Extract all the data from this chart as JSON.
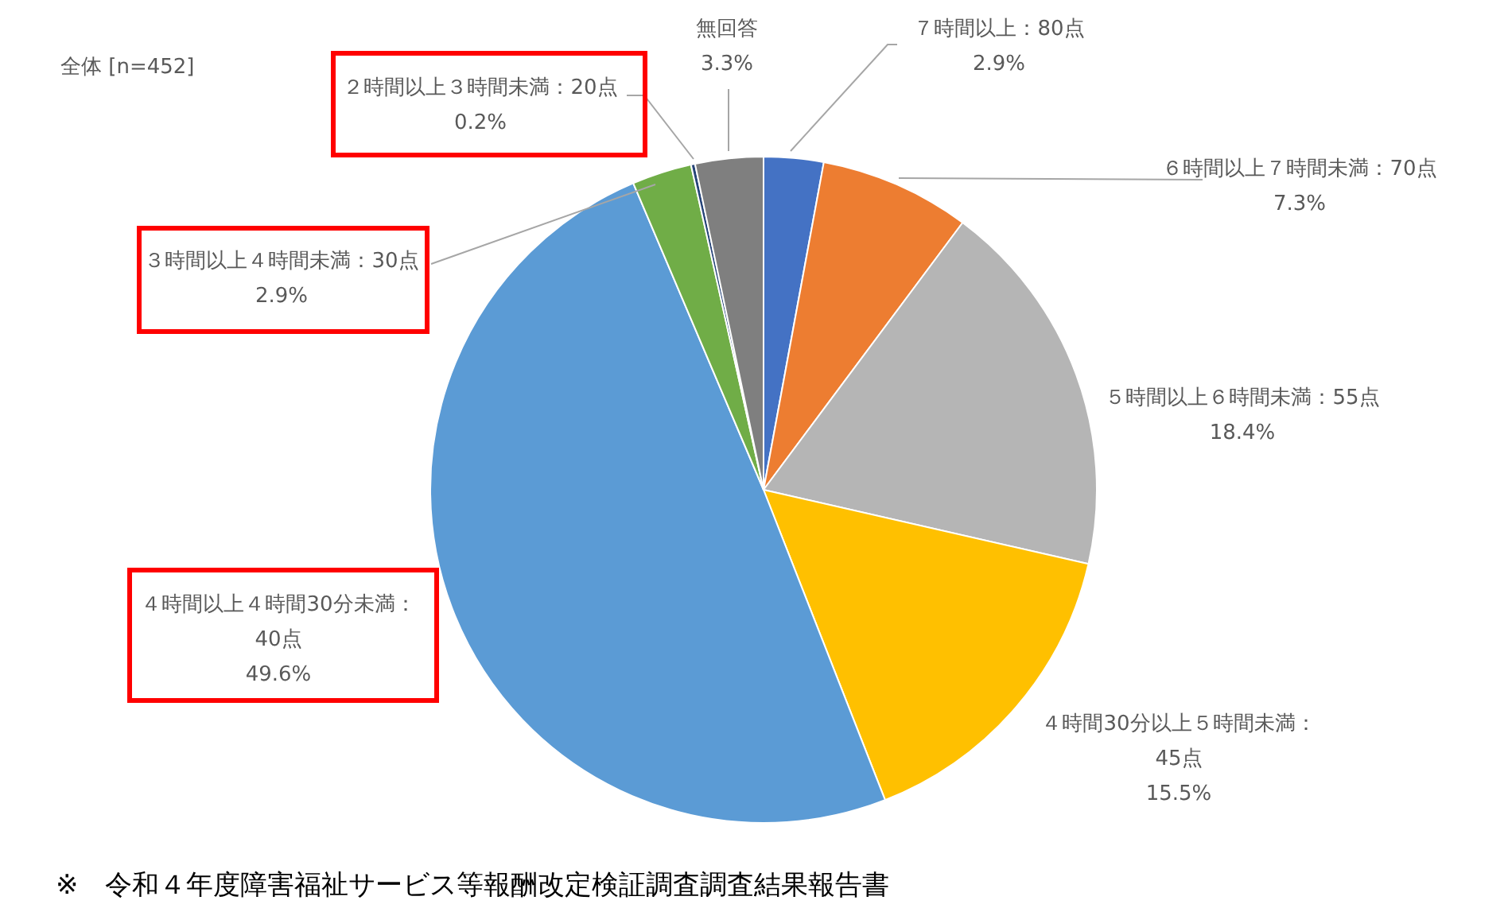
{
  "chart_data": {
    "type": "pie",
    "title": "全体 [n=452]",
    "categories": [
      "７時間以上：80点",
      "６時間以上７時間未満：70点",
      "５時間以上６時間未満：55点",
      "４時間30分以上５時間未満：45点",
      "４時間以上４時間30分未満：40点",
      "３時間以上４時間未満：30点",
      "２時間以上３時間未満：20点",
      "無回答"
    ],
    "values": [
      2.9,
      7.3,
      18.4,
      15.5,
      49.6,
      2.9,
      0.2,
      3.3
    ],
    "value_labels": [
      "2.9%",
      "7.3%",
      "18.4%",
      "15.5%",
      "49.6%",
      "2.9%",
      "0.2%",
      "3.3%"
    ],
    "colors": [
      "#4472c4",
      "#ed7d31",
      "#b5b5b5",
      "#ffc000",
      "#5b9bd5",
      "#70ad47",
      "#264478",
      "#7f7f7f"
    ],
    "legend": false,
    "annotations": [
      "※　令和４年度障害福祉サービス等報酬改定検証調査調査結果報告書"
    ]
  }
}
